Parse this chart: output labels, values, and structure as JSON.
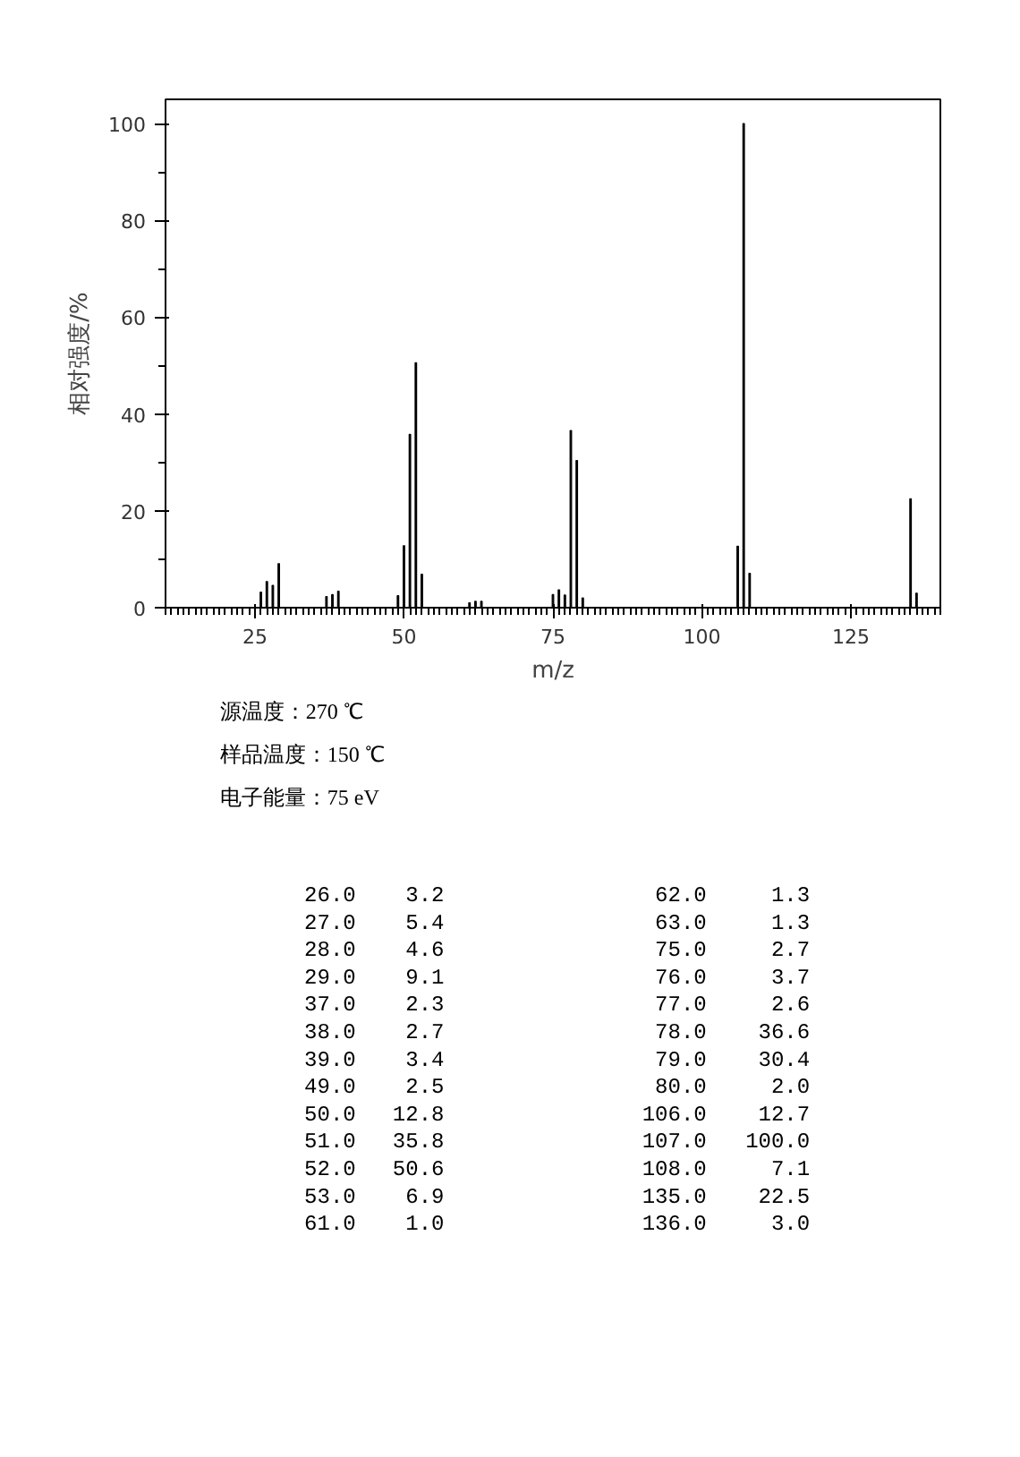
{
  "chart_data": {
    "type": "bar",
    "xlabel": "m/z",
    "ylabel": "相对强度/%",
    "x": [
      26,
      27,
      28,
      29,
      37,
      38,
      39,
      49,
      50,
      51,
      52,
      53,
      61,
      62,
      63,
      75,
      76,
      77,
      78,
      79,
      80,
      106,
      107,
      108,
      135,
      136
    ],
    "series": [
      {
        "color": "#000000",
        "values": [
          3.2,
          5.4,
          4.6,
          9.1,
          2.3,
          2.7,
          3.4,
          2.5,
          12.8,
          35.8,
          50.6,
          6.9,
          1.0,
          1.3,
          1.3,
          2.7,
          3.7,
          2.6,
          36.6,
          30.4,
          2.0,
          12.7,
          100.0,
          7.1,
          22.5,
          3.0
        ]
      }
    ],
    "xlim": [
      10,
      140
    ],
    "ylim": [
      0,
      105
    ],
    "xticks": [
      25,
      50,
      75,
      100,
      125
    ],
    "yticks": [
      0,
      20,
      40,
      60,
      80,
      100
    ],
    "grid": false,
    "annotations": [
      "源温度：270 ℃",
      "样品温度：150 ℃",
      "电子能量：75 eV",
      "26.0",
      "3.2",
      "62.0",
      "1.3",
      "27.0",
      "5.4",
      "63.0",
      "1.3",
      "28.0",
      "4.6",
      "75.0",
      "2.7",
      "29.0",
      "9.1",
      "76.0",
      "3.7",
      "37.0",
      "2.3",
      "77.0",
      "2.6",
      "38.0",
      "2.7",
      "78.0",
      "36.6",
      "39.0",
      "3.4",
      "79.0",
      "30.4",
      "49.0",
      "2.5",
      "80.0",
      "2.0",
      "50.0",
      "12.8",
      "106.0",
      "12.7",
      "51.0",
      "35.8",
      "107.0",
      "100.0",
      "52.0",
      "50.6",
      "108.0",
      "7.1",
      "53.0",
      "6.9",
      "135.0",
      "22.5",
      "61.0",
      "1.0",
      "136.0",
      "3.0"
    ]
  }
}
